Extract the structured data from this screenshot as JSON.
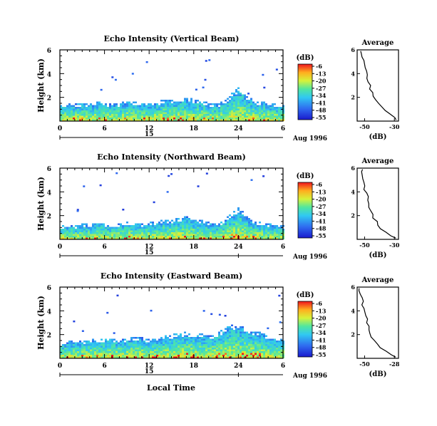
{
  "figure": {
    "local_time_label": "Local Time",
    "date_label": "Aug 1996",
    "day_label": "15"
  },
  "chart_data": [
    {
      "type": "heatmap",
      "title": "Echo Intensity (Vertical Beam)",
      "ylabel": "Height (km)",
      "xlabel": "Local Time",
      "x_ticks": [
        "0",
        "6",
        "12",
        "18",
        "24",
        "6"
      ],
      "x_range": [
        0,
        30
      ],
      "y_ticks": [
        "2",
        "4",
        "6"
      ],
      "y_range": [
        0,
        6
      ],
      "colorbar": {
        "unit": "(dB)",
        "ticks": [
          "-6",
          "-13",
          "-20",
          "-27",
          "-34",
          "-41",
          "-48",
          "-55"
        ]
      },
      "cloud_top_profile_km": [
        1.4,
        1.6,
        1.5,
        1.6,
        1.5,
        1.7,
        1.6,
        1.5,
        1.6,
        1.8,
        1.7,
        1.6,
        1.6,
        1.7,
        1.9,
        1.8,
        2.0,
        2.1,
        1.9,
        1.8,
        1.6,
        1.5,
        1.8,
        2.4,
        3.0,
        2.2,
        1.8,
        1.7,
        1.6,
        1.5,
        1.4
      ],
      "average_profile": {
        "title": "Average",
        "xlabel": "(dB)",
        "x_ticks": [
          "-50",
          "-30"
        ],
        "x_range": [
          -55,
          -27
        ],
        "y_ticks": [
          "2",
          "4",
          "6"
        ],
        "y_range": [
          0,
          6
        ],
        "height_km": [
          0.1,
          0.3,
          0.6,
          0.9,
          1.2,
          1.5,
          1.8,
          2.1,
          2.4,
          2.7,
          3.0,
          3.3,
          3.6,
          3.9,
          4.2,
          4.5,
          4.8,
          5.1,
          5.4,
          5.7,
          5.9
        ],
        "db": [
          -28,
          -30,
          -33,
          -36,
          -38,
          -40,
          -43,
          -44,
          -45,
          -46,
          -46,
          -47,
          -48,
          -48,
          -49,
          -50,
          -50,
          -51,
          -52,
          -52,
          -53
        ]
      }
    },
    {
      "type": "heatmap",
      "title": "Echo Intensity (Northward Beam)",
      "ylabel": "Height (km)",
      "xlabel": "Local Time",
      "x_ticks": [
        "0",
        "6",
        "12",
        "18",
        "24",
        "6"
      ],
      "x_range": [
        0,
        30
      ],
      "y_ticks": [
        "2",
        "4",
        "6"
      ],
      "y_range": [
        0,
        6
      ],
      "colorbar": {
        "unit": "(dB)",
        "ticks": [
          "-6",
          "-13",
          "-20",
          "-27",
          "-34",
          "-41",
          "-48",
          "-55"
        ]
      },
      "cloud_top_profile_km": [
        1.2,
        1.3,
        1.2,
        1.4,
        1.3,
        1.5,
        1.4,
        1.3,
        1.4,
        1.6,
        1.5,
        1.4,
        1.5,
        1.6,
        1.8,
        1.7,
        1.9,
        2.0,
        1.8,
        1.7,
        1.5,
        1.4,
        1.7,
        2.3,
        2.9,
        2.0,
        1.6,
        1.5,
        1.4,
        1.3,
        1.2
      ],
      "average_profile": {
        "title": "Average",
        "xlabel": "(dB)",
        "x_ticks": [
          "-50",
          "-30"
        ],
        "x_range": [
          -55,
          -27
        ],
        "y_ticks": [
          "2",
          "4",
          "6"
        ],
        "y_range": [
          0,
          6
        ],
        "height_km": [
          0.1,
          0.3,
          0.6,
          0.9,
          1.2,
          1.5,
          1.8,
          2.1,
          2.4,
          2.7,
          3.0,
          3.3,
          3.6,
          3.9,
          4.2,
          4.5,
          4.8,
          5.1,
          5.4,
          5.7,
          5.9
        ],
        "db": [
          -29,
          -32,
          -36,
          -39,
          -41,
          -42,
          -44,
          -45,
          -46,
          -47,
          -47,
          -48,
          -48,
          -49,
          -50,
          -50,
          -51,
          -51,
          -52,
          -52,
          -52
        ]
      }
    },
    {
      "type": "heatmap",
      "title": "Echo Intensity (Eastward Beam)",
      "ylabel": "Height (km)",
      "xlabel": "Local Time",
      "x_ticks": [
        "0",
        "6",
        "12",
        "18",
        "24",
        "6"
      ],
      "x_range": [
        0,
        30
      ],
      "y_ticks": [
        "2",
        "4",
        "6"
      ],
      "y_range": [
        0,
        6
      ],
      "colorbar": {
        "unit": "(dB)",
        "ticks": [
          "-6",
          "-13",
          "-20",
          "-27",
          "-34",
          "-41",
          "-48",
          "-55"
        ]
      },
      "cloud_top_profile_km": [
        1.4,
        1.5,
        1.6,
        1.5,
        1.7,
        1.6,
        1.8,
        1.7,
        1.6,
        1.8,
        1.9,
        1.8,
        1.7,
        1.8,
        2.0,
        2.1,
        2.2,
        2.3,
        2.2,
        2.1,
        2.0,
        2.2,
        2.6,
        3.0,
        2.8,
        2.6,
        2.4,
        2.2,
        2.0,
        1.8,
        1.6
      ],
      "average_profile": {
        "title": "Average",
        "xlabel": "(dB)",
        "x_ticks": [
          "-50",
          "-28"
        ],
        "x_range": [
          -55,
          -25
        ],
        "y_ticks": [
          "2",
          "4",
          "6"
        ],
        "y_range": [
          0,
          6
        ],
        "height_km": [
          0.1,
          0.3,
          0.6,
          0.9,
          1.2,
          1.5,
          1.8,
          2.1,
          2.4,
          2.7,
          3.0,
          3.3,
          3.6,
          3.9,
          4.2,
          4.5,
          4.8,
          5.1,
          5.4,
          5.7,
          5.9
        ],
        "db": [
          -27,
          -30,
          -34,
          -38,
          -41,
          -43,
          -45,
          -46,
          -46,
          -47,
          -48,
          -48,
          -49,
          -50,
          -50,
          -51,
          -51,
          -52,
          -52,
          -53,
          -53
        ]
      }
    }
  ]
}
